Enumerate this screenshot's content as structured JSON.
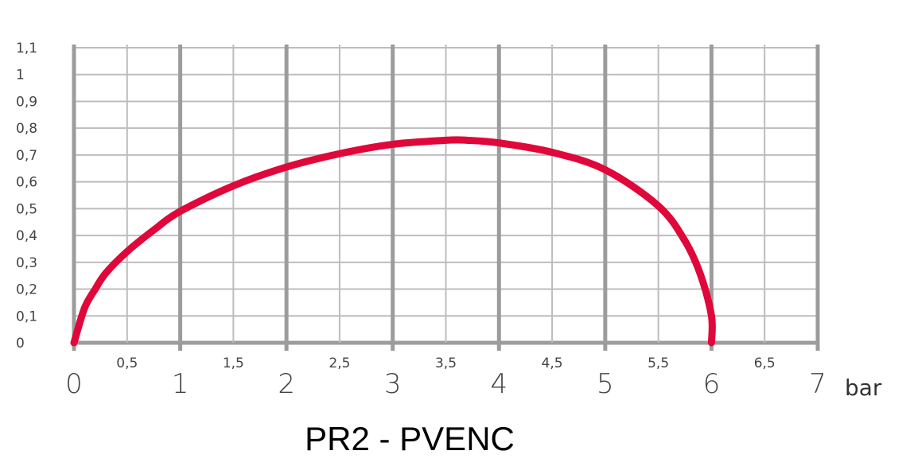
{
  "chart_data": {
    "type": "line",
    "title": "PR2 - PVENC",
    "xlabel": "bar",
    "ylabel": "",
    "xlim": [
      0,
      7
    ],
    "ylim": [
      0,
      1.1
    ],
    "x_major_ticks": [
      "0",
      "1",
      "2",
      "3",
      "4",
      "5",
      "6",
      "7"
    ],
    "x_minor_ticks": [
      "0,5",
      "1,5",
      "2,5",
      "3,5",
      "4,5",
      "5,5",
      "6,5"
    ],
    "y_ticks": [
      "0",
      "0,1",
      "0,2",
      "0,3",
      "0,4",
      "0,5",
      "0,6",
      "0,7",
      "0,8",
      "0,9",
      "1",
      "1,1"
    ],
    "grid": true,
    "series": [
      {
        "color": "#e0073a",
        "x": [
          0.0,
          0.1,
          0.2,
          0.3,
          0.5,
          0.75,
          1.0,
          1.5,
          2.0,
          2.5,
          3.0,
          3.5,
          3.7,
          4.0,
          4.5,
          5.0,
          5.5,
          5.75,
          5.9,
          6.0,
          6.0
        ],
        "y": [
          0.0,
          0.13,
          0.2,
          0.26,
          0.34,
          0.42,
          0.49,
          0.585,
          0.655,
          0.705,
          0.74,
          0.755,
          0.755,
          0.745,
          0.71,
          0.645,
          0.51,
          0.38,
          0.25,
          0.1,
          0.0
        ]
      }
    ],
    "colors": {
      "grid_major": "#9c9c9c",
      "grid_minor": "#bdbdbd",
      "line": "#e0073a"
    }
  }
}
